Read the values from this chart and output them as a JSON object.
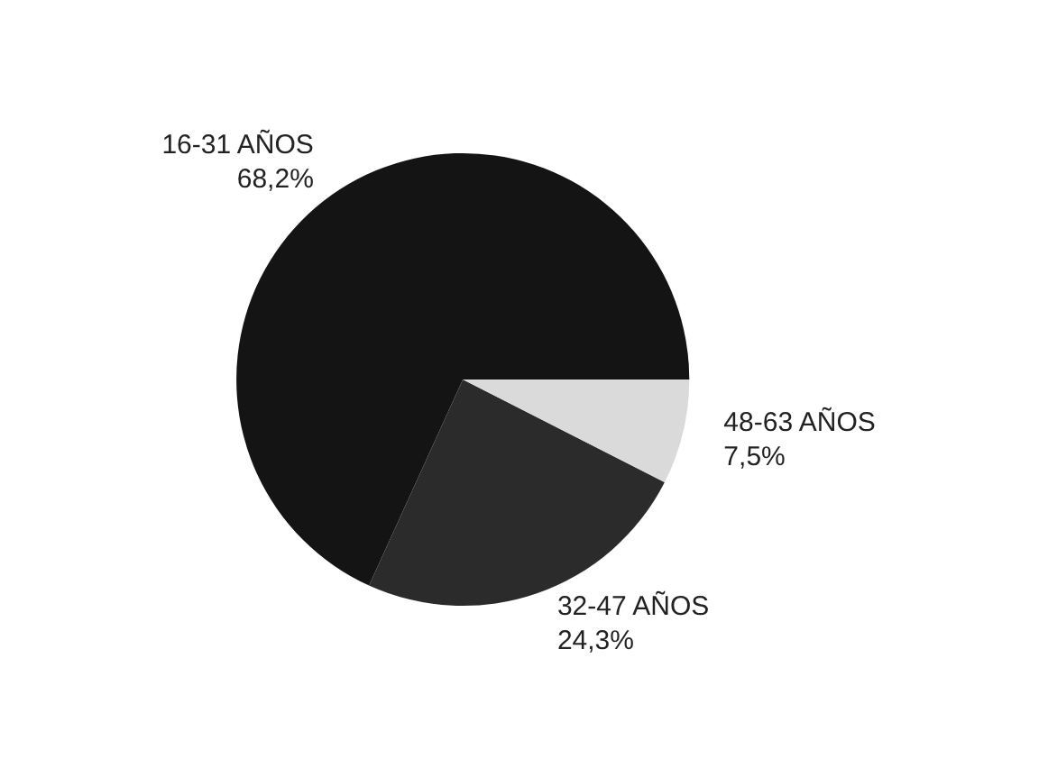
{
  "chart_data": {
    "type": "pie",
    "categories": [
      "16-31 AÑOS",
      "32-47 AÑOS",
      "48-63 AÑOS"
    ],
    "values": [
      68.2,
      24.3,
      7.5
    ],
    "value_labels": [
      "68,2%",
      "24,3%",
      "7,5%"
    ],
    "colors": [
      "#141414",
      "#2b2b2b",
      "#dadada"
    ],
    "legend": false
  }
}
